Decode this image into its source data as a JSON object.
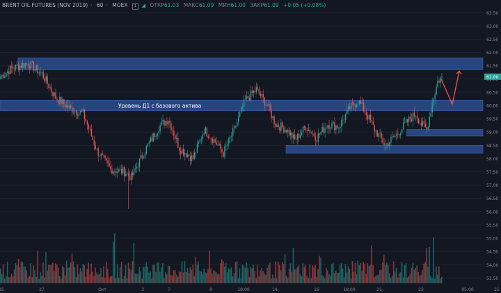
{
  "header": {
    "symbol": "BRENT OIL FUTURES (NOV 2019)",
    "interval": "60",
    "exchange": "MOEX",
    "open_label": "ОТКР",
    "open_value": "61.03",
    "high_label": "МАКС",
    "high_value": "61.09",
    "low_label": "МИН",
    "low_value": "61.00",
    "close_label": "ЗАКР",
    "close_value": "61.09",
    "change": "+0.05 (+0.08%)",
    "hide_icon_text": "1"
  },
  "annotation": {
    "text": "Уровень Д1 с базового актива"
  },
  "price_tag": "61.09",
  "colors": {
    "up": "#26a69a",
    "down": "#ef5350",
    "zone": "#2a4e8f",
    "bg": "#131722",
    "arrow": "#ef5350"
  },
  "chart_data": {
    "type": "candlestick",
    "title": "",
    "y_ticks": [
      "63.50",
      "63.00",
      "62.50",
      "62.00",
      "61.50",
      "61.00",
      "60.50",
      "60.00",
      "59.50",
      "59.00",
      "58.50",
      "58.00",
      "57.50",
      "57.00",
      "56.50",
      "56.00",
      "55.50",
      "55.00",
      "54.50",
      "54.00",
      "53.50"
    ],
    "x_ticks": [
      "25",
      "27",
      "Окт",
      "3",
      "7",
      "9",
      "18:00",
      "14",
      "16",
      "18:00",
      "21",
      "23",
      "05:00",
      "25"
    ],
    "ylim": [
      53.3,
      63.9
    ],
    "key_points": [
      {
        "t": 0,
        "p": 61.1
      },
      {
        "t": 8,
        "p": 61.4
      },
      {
        "t": 20,
        "p": 61.6
      },
      {
        "t": 30,
        "p": 61.2
      },
      {
        "t": 40,
        "p": 60.3
      },
      {
        "t": 50,
        "p": 59.9
      },
      {
        "t": 60,
        "p": 59.7
      },
      {
        "t": 70,
        "p": 58.3
      },
      {
        "t": 80,
        "p": 57.6
      },
      {
        "t": 90,
        "p": 57.5
      },
      {
        "t": 95,
        "p": 57.3
      },
      {
        "t": 105,
        "p": 58.3
      },
      {
        "t": 115,
        "p": 59.2
      },
      {
        "t": 122,
        "p": 59.5
      },
      {
        "t": 130,
        "p": 58.4
      },
      {
        "t": 140,
        "p": 58.0
      },
      {
        "t": 148,
        "p": 59.1
      },
      {
        "t": 155,
        "p": 58.7
      },
      {
        "t": 162,
        "p": 58.2
      },
      {
        "t": 170,
        "p": 59.1
      },
      {
        "t": 178,
        "p": 60.2
      },
      {
        "t": 186,
        "p": 60.6
      },
      {
        "t": 194,
        "p": 60.0
      },
      {
        "t": 200,
        "p": 59.3
      },
      {
        "t": 208,
        "p": 59.1
      },
      {
        "t": 214,
        "p": 58.7
      },
      {
        "t": 222,
        "p": 59.2
      },
      {
        "t": 230,
        "p": 58.8
      },
      {
        "t": 238,
        "p": 59.3
      },
      {
        "t": 246,
        "p": 59.2
      },
      {
        "t": 254,
        "p": 59.9
      },
      {
        "t": 260,
        "p": 60.2
      },
      {
        "t": 266,
        "p": 59.7
      },
      {
        "t": 272,
        "p": 59.1
      },
      {
        "t": 280,
        "p": 58.5
      },
      {
        "t": 288,
        "p": 58.9
      },
      {
        "t": 296,
        "p": 59.4
      },
      {
        "t": 302,
        "p": 59.7
      },
      {
        "t": 306,
        "p": 59.3
      },
      {
        "t": 310,
        "p": 59.1
      },
      {
        "t": 314,
        "p": 60.1
      },
      {
        "t": 318,
        "p": 60.9
      },
      {
        "t": 321,
        "p": 61.09
      }
    ],
    "zones": [
      {
        "from": 61.8,
        "to": 61.35,
        "x_start_frac": 0.02
      },
      {
        "from": 60.2,
        "to": 59.8,
        "x_start_frac": 0.0
      },
      {
        "from": 59.1,
        "to": 58.85,
        "x_start_frac": 0.825
      },
      {
        "from": 58.5,
        "to": 58.2,
        "x_start_frac": 0.575
      }
    ]
  }
}
